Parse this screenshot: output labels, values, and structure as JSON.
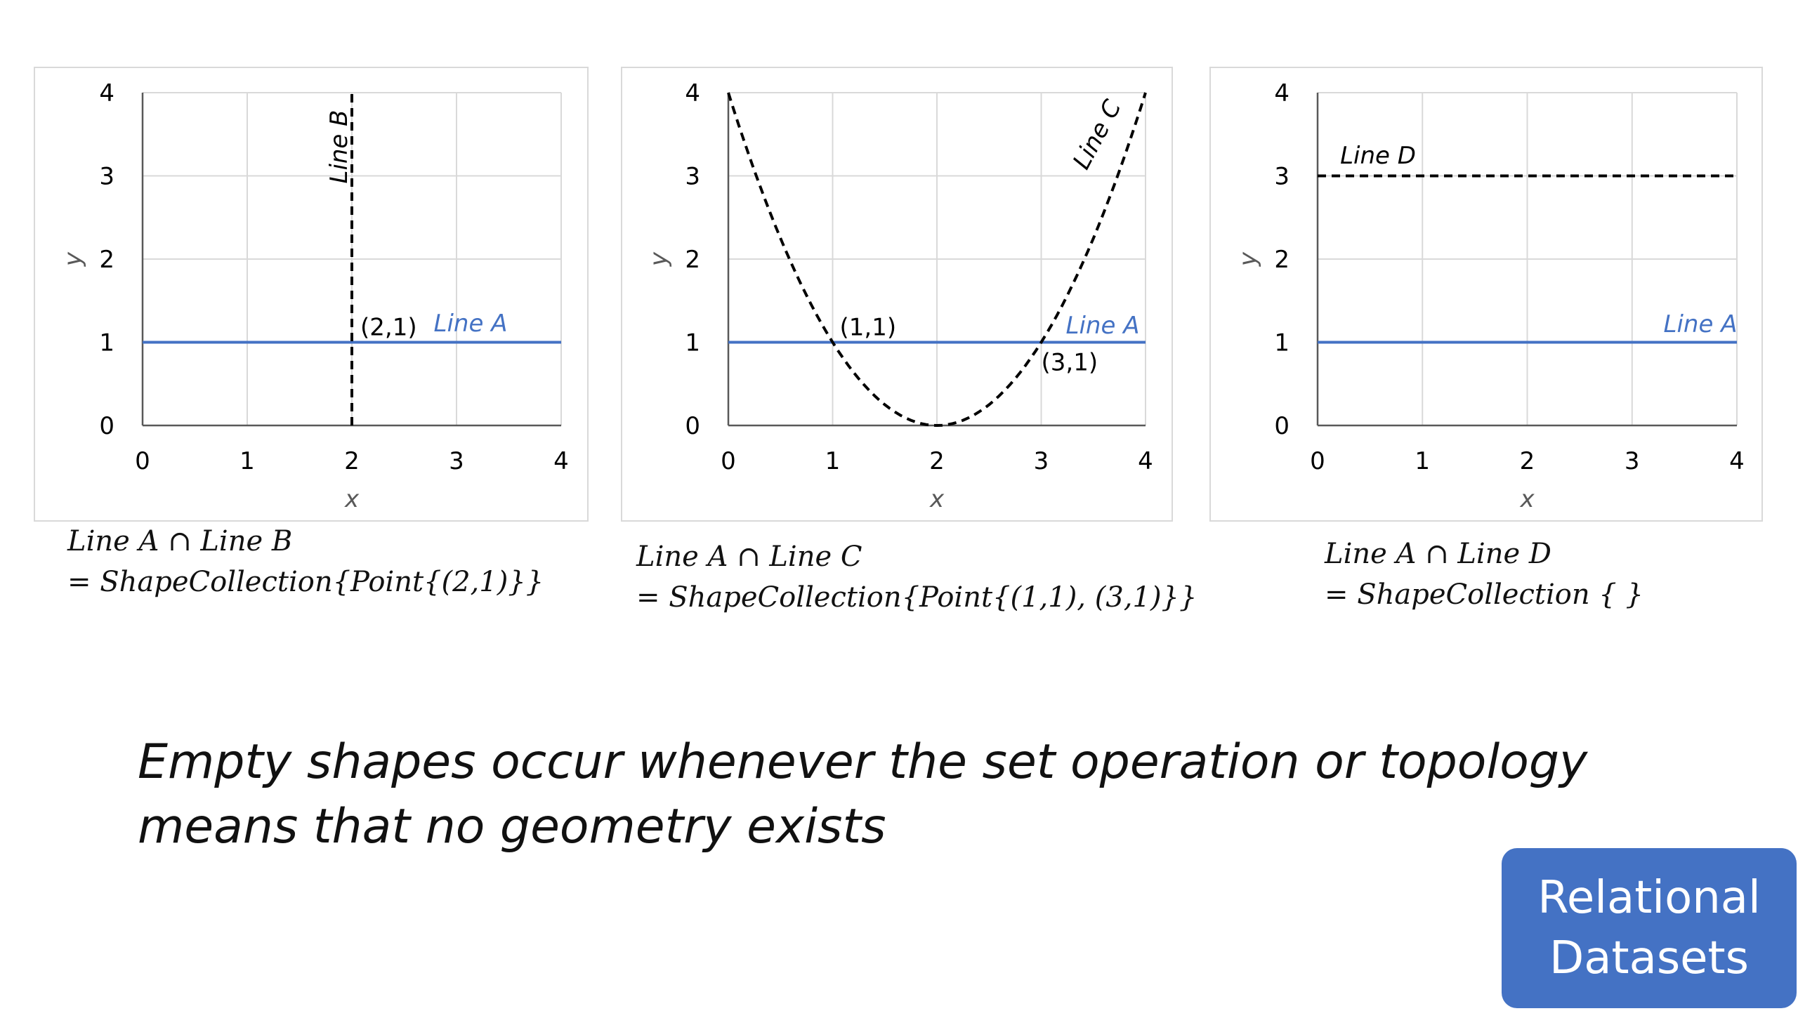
{
  "chart_data": [
    {
      "type": "line",
      "xlabel": "x",
      "ylabel": "y",
      "xlim": [
        0,
        4
      ],
      "ylim": [
        0,
        4
      ],
      "xticks": [
        0,
        1,
        2,
        3,
        4
      ],
      "yticks": [
        0,
        1,
        2,
        3,
        4
      ],
      "grid": true,
      "series": [
        {
          "name": "Line A",
          "style": "solid",
          "color": "#4472c4",
          "x": [
            0,
            4
          ],
          "y": [
            1,
            1
          ]
        },
        {
          "name": "Line B",
          "style": "dashed",
          "color": "#000000",
          "x": [
            2,
            2
          ],
          "y": [
            0,
            4
          ]
        }
      ],
      "annotations": [
        {
          "text": "(2,1)",
          "x": 2,
          "y": 1
        }
      ]
    },
    {
      "type": "line",
      "xlabel": "x",
      "ylabel": "y",
      "xlim": [
        0,
        4
      ],
      "ylim": [
        0,
        4
      ],
      "xticks": [
        0,
        1,
        2,
        3,
        4
      ],
      "yticks": [
        0,
        1,
        2,
        3,
        4
      ],
      "grid": true,
      "series": [
        {
          "name": "Line A",
          "style": "solid",
          "color": "#4472c4",
          "x": [
            0,
            4
          ],
          "y": [
            1,
            1
          ]
        },
        {
          "name": "Line C",
          "style": "dashed",
          "color": "#000000",
          "x": [
            0,
            0.5,
            1,
            1.5,
            2,
            2.5,
            3,
            3.5,
            4
          ],
          "y": [
            4,
            2.25,
            1,
            0.25,
            0,
            0.25,
            1,
            2.25,
            4
          ]
        }
      ],
      "annotations": [
        {
          "text": "(1,1)",
          "x": 1,
          "y": 1
        },
        {
          "text": "(3,1)",
          "x": 3,
          "y": 1
        }
      ]
    },
    {
      "type": "line",
      "xlabel": "x",
      "ylabel": "y",
      "xlim": [
        0,
        4
      ],
      "ylim": [
        0,
        4
      ],
      "xticks": [
        0,
        1,
        2,
        3,
        4
      ],
      "yticks": [
        0,
        1,
        2,
        3,
        4
      ],
      "grid": true,
      "series": [
        {
          "name": "Line A",
          "style": "solid",
          "color": "#4472c4",
          "x": [
            0,
            4
          ],
          "y": [
            1,
            1
          ]
        },
        {
          "name": "Line D",
          "style": "dashed",
          "color": "#000000",
          "x": [
            0,
            4
          ],
          "y": [
            3,
            3
          ]
        }
      ],
      "annotations": []
    }
  ],
  "captions": [
    {
      "line1": "Line A  ∩ Line B",
      "line2": "= ShapeCollection{Point{(2,1)}}"
    },
    {
      "line1": "Line A  ∩ Line C",
      "line2": "= ShapeCollection{Point{(1,1), (3,1)}}"
    },
    {
      "line1": "Line A  ∩ Line D",
      "line2": "= ShapeCollection {    }"
    }
  ],
  "tagline": {
    "line1": "Empty shapes occur whenever the set operation or topology",
    "line2": "means that no geometry exists"
  },
  "badge": {
    "line1": "Relational",
    "line2": "Datasets"
  },
  "colors": {
    "line_a": "#4472c4",
    "badge": "#4472c4",
    "grid": "#d9d9d9",
    "axis": "#595959"
  }
}
